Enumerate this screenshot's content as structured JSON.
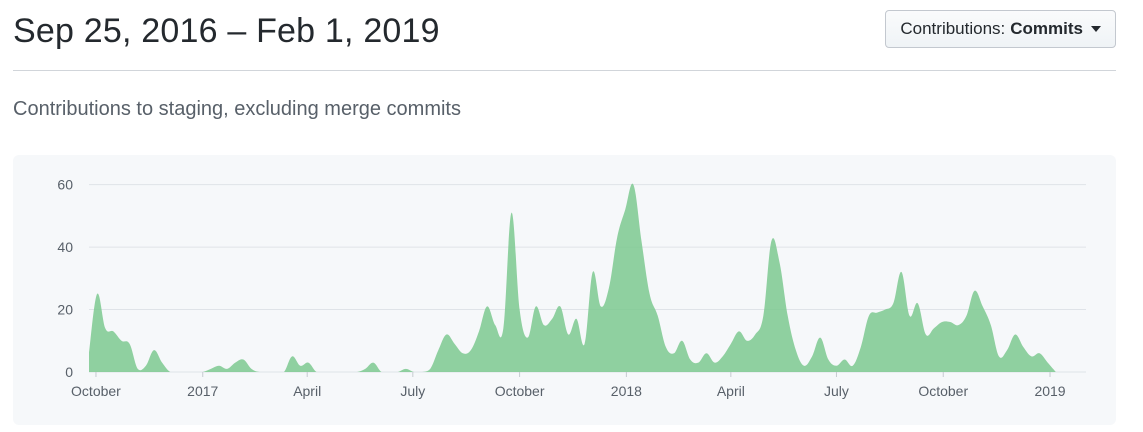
{
  "header": {
    "date_range": "Sep 25, 2016 – Feb 1, 2019",
    "dropdown_label": "Contributions:",
    "dropdown_value": "Commits"
  },
  "subtitle": "Contributions to staging, excluding merge commits",
  "colors": {
    "area_fill": "#7dc98f",
    "grid": "#dfe3e8",
    "axis_text": "#586069"
  },
  "chart_data": {
    "type": "area",
    "title": "",
    "xlabel": "",
    "ylabel": "",
    "ylim": [
      0,
      65
    ],
    "yticks": [
      0,
      20,
      40,
      60
    ],
    "grid": true,
    "x_start": "2016-09-25",
    "x_end": "2019-02-01",
    "xticks": [
      {
        "date": "2016-10-01",
        "label": "October"
      },
      {
        "date": "2017-01-01",
        "label": "2017"
      },
      {
        "date": "2017-04-01",
        "label": "April"
      },
      {
        "date": "2017-07-01",
        "label": "July"
      },
      {
        "date": "2017-10-01",
        "label": "October"
      },
      {
        "date": "2018-01-01",
        "label": "2018"
      },
      {
        "date": "2018-04-01",
        "label": "April"
      },
      {
        "date": "2018-07-01",
        "label": "July"
      },
      {
        "date": "2018-10-01",
        "label": "October"
      },
      {
        "date": "2019-01-01",
        "label": "2019"
      }
    ],
    "series": [
      {
        "values": [
          [
            "2016-09-25",
            6
          ],
          [
            "2016-10-02",
            25
          ],
          [
            "2016-10-09",
            14
          ],
          [
            "2016-10-16",
            13
          ],
          [
            "2016-10-23",
            10
          ],
          [
            "2016-10-30",
            9
          ],
          [
            "2016-11-06",
            1
          ],
          [
            "2016-11-13",
            2
          ],
          [
            "2016-11-20",
            7
          ],
          [
            "2016-11-27",
            3
          ],
          [
            "2016-12-04",
            0
          ],
          [
            "2016-12-11",
            0
          ],
          [
            "2016-12-18",
            0
          ],
          [
            "2016-12-25",
            0
          ],
          [
            "2017-01-01",
            0
          ],
          [
            "2017-01-08",
            1
          ],
          [
            "2017-01-15",
            2
          ],
          [
            "2017-01-22",
            1
          ],
          [
            "2017-01-29",
            3
          ],
          [
            "2017-02-05",
            4
          ],
          [
            "2017-02-12",
            1
          ],
          [
            "2017-02-19",
            0
          ],
          [
            "2017-02-26",
            0
          ],
          [
            "2017-03-05",
            0
          ],
          [
            "2017-03-12",
            0
          ],
          [
            "2017-03-19",
            5
          ],
          [
            "2017-03-26",
            2
          ],
          [
            "2017-04-02",
            3
          ],
          [
            "2017-04-09",
            0
          ],
          [
            "2017-04-16",
            0
          ],
          [
            "2017-04-23",
            0
          ],
          [
            "2017-04-30",
            0
          ],
          [
            "2017-05-07",
            0
          ],
          [
            "2017-05-14",
            0
          ],
          [
            "2017-05-21",
            1
          ],
          [
            "2017-05-28",
            3
          ],
          [
            "2017-06-04",
            0
          ],
          [
            "2017-06-11",
            0
          ],
          [
            "2017-06-18",
            0
          ],
          [
            "2017-06-25",
            1
          ],
          [
            "2017-07-02",
            0
          ],
          [
            "2017-07-09",
            0
          ],
          [
            "2017-07-16",
            1
          ],
          [
            "2017-07-23",
            7
          ],
          [
            "2017-07-30",
            12
          ],
          [
            "2017-08-06",
            9
          ],
          [
            "2017-08-13",
            6
          ],
          [
            "2017-08-20",
            7
          ],
          [
            "2017-08-27",
            13
          ],
          [
            "2017-09-03",
            21
          ],
          [
            "2017-09-10",
            15
          ],
          [
            "2017-09-17",
            14
          ],
          [
            "2017-09-24",
            51
          ],
          [
            "2017-10-01",
            20
          ],
          [
            "2017-10-08",
            11
          ],
          [
            "2017-10-15",
            21
          ],
          [
            "2017-10-22",
            15
          ],
          [
            "2017-10-29",
            17
          ],
          [
            "2017-11-05",
            21
          ],
          [
            "2017-11-12",
            12
          ],
          [
            "2017-11-19",
            17
          ],
          [
            "2017-11-26",
            9
          ],
          [
            "2017-12-03",
            32
          ],
          [
            "2017-12-10",
            21
          ],
          [
            "2017-12-17",
            27
          ],
          [
            "2017-12-24",
            43
          ],
          [
            "2017-12-31",
            52
          ],
          [
            "2018-01-07",
            60
          ],
          [
            "2018-01-14",
            42
          ],
          [
            "2018-01-21",
            25
          ],
          [
            "2018-01-28",
            18
          ],
          [
            "2018-02-04",
            8
          ],
          [
            "2018-02-11",
            6
          ],
          [
            "2018-02-18",
            10
          ],
          [
            "2018-02-25",
            4
          ],
          [
            "2018-03-04",
            3
          ],
          [
            "2018-03-11",
            6
          ],
          [
            "2018-03-18",
            3
          ],
          [
            "2018-03-25",
            5
          ],
          [
            "2018-04-01",
            9
          ],
          [
            "2018-04-08",
            13
          ],
          [
            "2018-04-15",
            10
          ],
          [
            "2018-04-22",
            12
          ],
          [
            "2018-04-29",
            18
          ],
          [
            "2018-05-06",
            42
          ],
          [
            "2018-05-13",
            35
          ],
          [
            "2018-05-20",
            18
          ],
          [
            "2018-05-27",
            7
          ],
          [
            "2018-06-03",
            2
          ],
          [
            "2018-06-10",
            5
          ],
          [
            "2018-06-17",
            11
          ],
          [
            "2018-06-24",
            4
          ],
          [
            "2018-07-01",
            2
          ],
          [
            "2018-07-08",
            4
          ],
          [
            "2018-07-15",
            2
          ],
          [
            "2018-07-22",
            8
          ],
          [
            "2018-07-29",
            18
          ],
          [
            "2018-08-05",
            19
          ],
          [
            "2018-08-12",
            20
          ],
          [
            "2018-08-19",
            22
          ],
          [
            "2018-08-26",
            32
          ],
          [
            "2018-09-02",
            18
          ],
          [
            "2018-09-09",
            22
          ],
          [
            "2018-09-16",
            12
          ],
          [
            "2018-09-23",
            14
          ],
          [
            "2018-09-30",
            16
          ],
          [
            "2018-10-07",
            16
          ],
          [
            "2018-10-14",
            15
          ],
          [
            "2018-10-21",
            18
          ],
          [
            "2018-10-28",
            26
          ],
          [
            "2018-11-04",
            21
          ],
          [
            "2018-11-11",
            15
          ],
          [
            "2018-11-18",
            5
          ],
          [
            "2018-11-25",
            7
          ],
          [
            "2018-12-02",
            12
          ],
          [
            "2018-12-09",
            8
          ],
          [
            "2018-12-16",
            5
          ],
          [
            "2018-12-23",
            6
          ],
          [
            "2018-12-30",
            3
          ],
          [
            "2019-01-06",
            0
          ]
        ]
      }
    ]
  }
}
